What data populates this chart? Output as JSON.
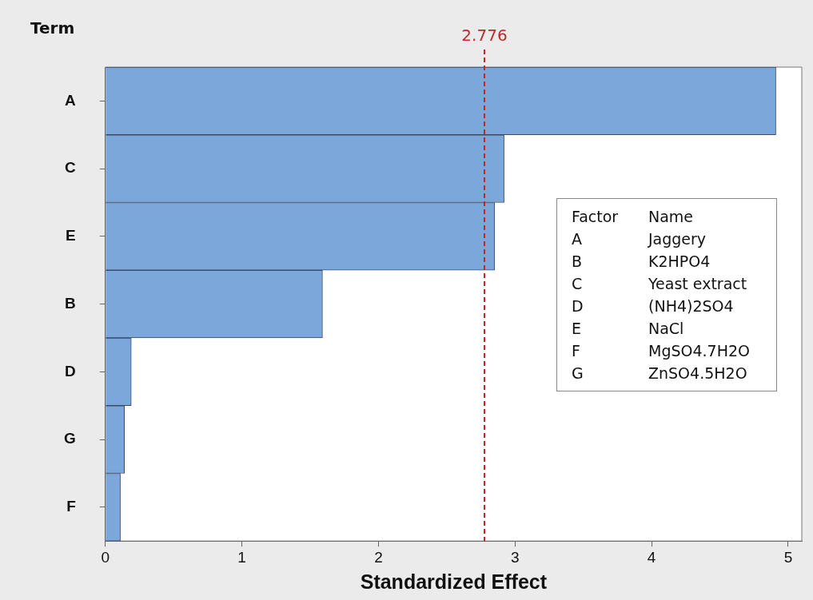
{
  "chart_data": {
    "type": "bar",
    "orientation": "horizontal",
    "xlabel": "Standardized Effect",
    "ylabel": "Term",
    "categories": [
      "A",
      "C",
      "E",
      "B",
      "D",
      "G",
      "F"
    ],
    "values": [
      4.91,
      2.92,
      2.85,
      1.59,
      0.19,
      0.14,
      0.11
    ],
    "color": "#7ba7da",
    "xlim": [
      0,
      5.1
    ],
    "xticks": [
      0,
      1,
      2,
      3,
      4,
      5
    ],
    "ref_lines": [
      {
        "axis": "x",
        "value": 2.776,
        "label": "2.776",
        "color": "#c0282d",
        "line_style": "dashed"
      }
    ],
    "annotations": [
      "Factor",
      "Name",
      "A",
      "Jaggery",
      "B",
      "K2HPO4",
      "C",
      "Yeast extract",
      "D",
      "(NH4)2SO4",
      "E",
      "NaCl",
      "F",
      "MgSO4.7H2O",
      "G",
      "ZnSO4.5H2O"
    ]
  }
}
